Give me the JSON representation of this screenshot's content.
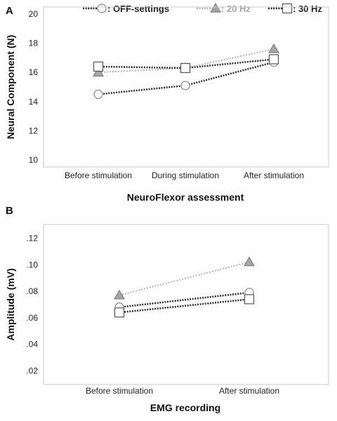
{
  "legend": {
    "items": [
      {
        "label": ": OFF-settings",
        "color": "#222222",
        "marker": "circle"
      },
      {
        "label": ": 20 Hz",
        "color": "#a6a6a6",
        "marker": "triangle"
      },
      {
        "label": ": 30 Hz",
        "color": "#222222",
        "marker": "square"
      }
    ]
  },
  "chart_data": [
    {
      "panel": "A",
      "type": "line",
      "xlabel": "NeuroFlexor assessment",
      "ylabel": "Neural Component (N)",
      "categories": [
        "Before stimulation",
        "During stimulation",
        "After stimulation"
      ],
      "ylim": [
        10,
        20
      ],
      "yticks": [
        "10",
        "12",
        "14",
        "16",
        "18",
        "20"
      ],
      "grid": false,
      "series": [
        {
          "name": "OFF-settings",
          "marker": "circle",
          "color": "#222222",
          "values": [
            14.5,
            15.1,
            16.7
          ]
        },
        {
          "name": "20 Hz",
          "marker": "triangle",
          "color": "#a6a6a6",
          "values": [
            16.0,
            16.3,
            17.6
          ]
        },
        {
          "name": "30 Hz",
          "marker": "square",
          "color": "#222222",
          "values": [
            16.4,
            16.3,
            16.9
          ]
        }
      ]
    },
    {
      "panel": "B",
      "type": "line",
      "xlabel": "EMG recording",
      "ylabel": "Amplitude (mV)",
      "categories": [
        "Before stimulation",
        "After stimulation"
      ],
      "ylim": [
        0.015,
        0.125
      ],
      "yticks": [
        ".02",
        ".04",
        ".06",
        ".08",
        ".10",
        ".12"
      ],
      "grid": false,
      "series": [
        {
          "name": "OFF-settings",
          "marker": "circle",
          "color": "#222222",
          "values": [
            0.068,
            0.079
          ]
        },
        {
          "name": "20 Hz",
          "marker": "triangle",
          "color": "#a6a6a6",
          "values": [
            0.077,
            0.102
          ]
        },
        {
          "name": "30 Hz",
          "marker": "square",
          "color": "#222222",
          "values": [
            0.064,
            0.074
          ]
        }
      ]
    }
  ]
}
